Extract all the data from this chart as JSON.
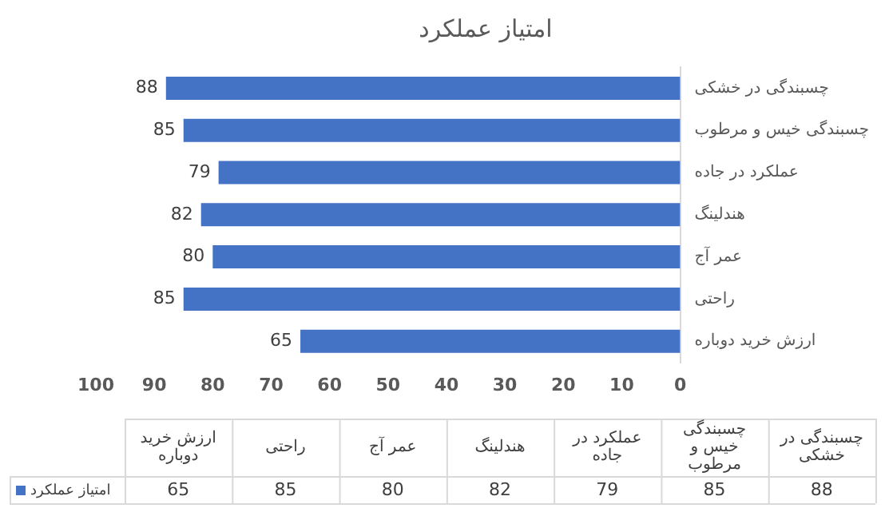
{
  "chart_data": {
    "type": "bar",
    "orientation": "horizontal",
    "title": "امتیاز عملکرد",
    "categories": [
      "چسبندگی در خشکی",
      "چسبندگی خیس و مرطوب",
      "عملکرد در جاده",
      "هندلینگ",
      "عمر آج",
      "راحتی",
      "ارزش خرید دوباره"
    ],
    "series": [
      {
        "name": "امتیاز عملکرد",
        "color": "#4472c4",
        "values": [
          88,
          85,
          79,
          82,
          80,
          85,
          65
        ],
        "value_labels": [
          "88",
          "85",
          "79",
          "82",
          "80",
          "85",
          "65"
        ]
      }
    ],
    "xlim": [
      100,
      0
    ],
    "xticks": [
      0,
      10,
      20,
      30,
      40,
      50,
      60,
      70,
      80,
      90,
      100
    ],
    "annotations": [
      "88",
      "85",
      "79",
      "82",
      "80",
      "85",
      "65"
    ],
    "grid": false,
    "legend": "bottom",
    "data_labels": true
  }
}
